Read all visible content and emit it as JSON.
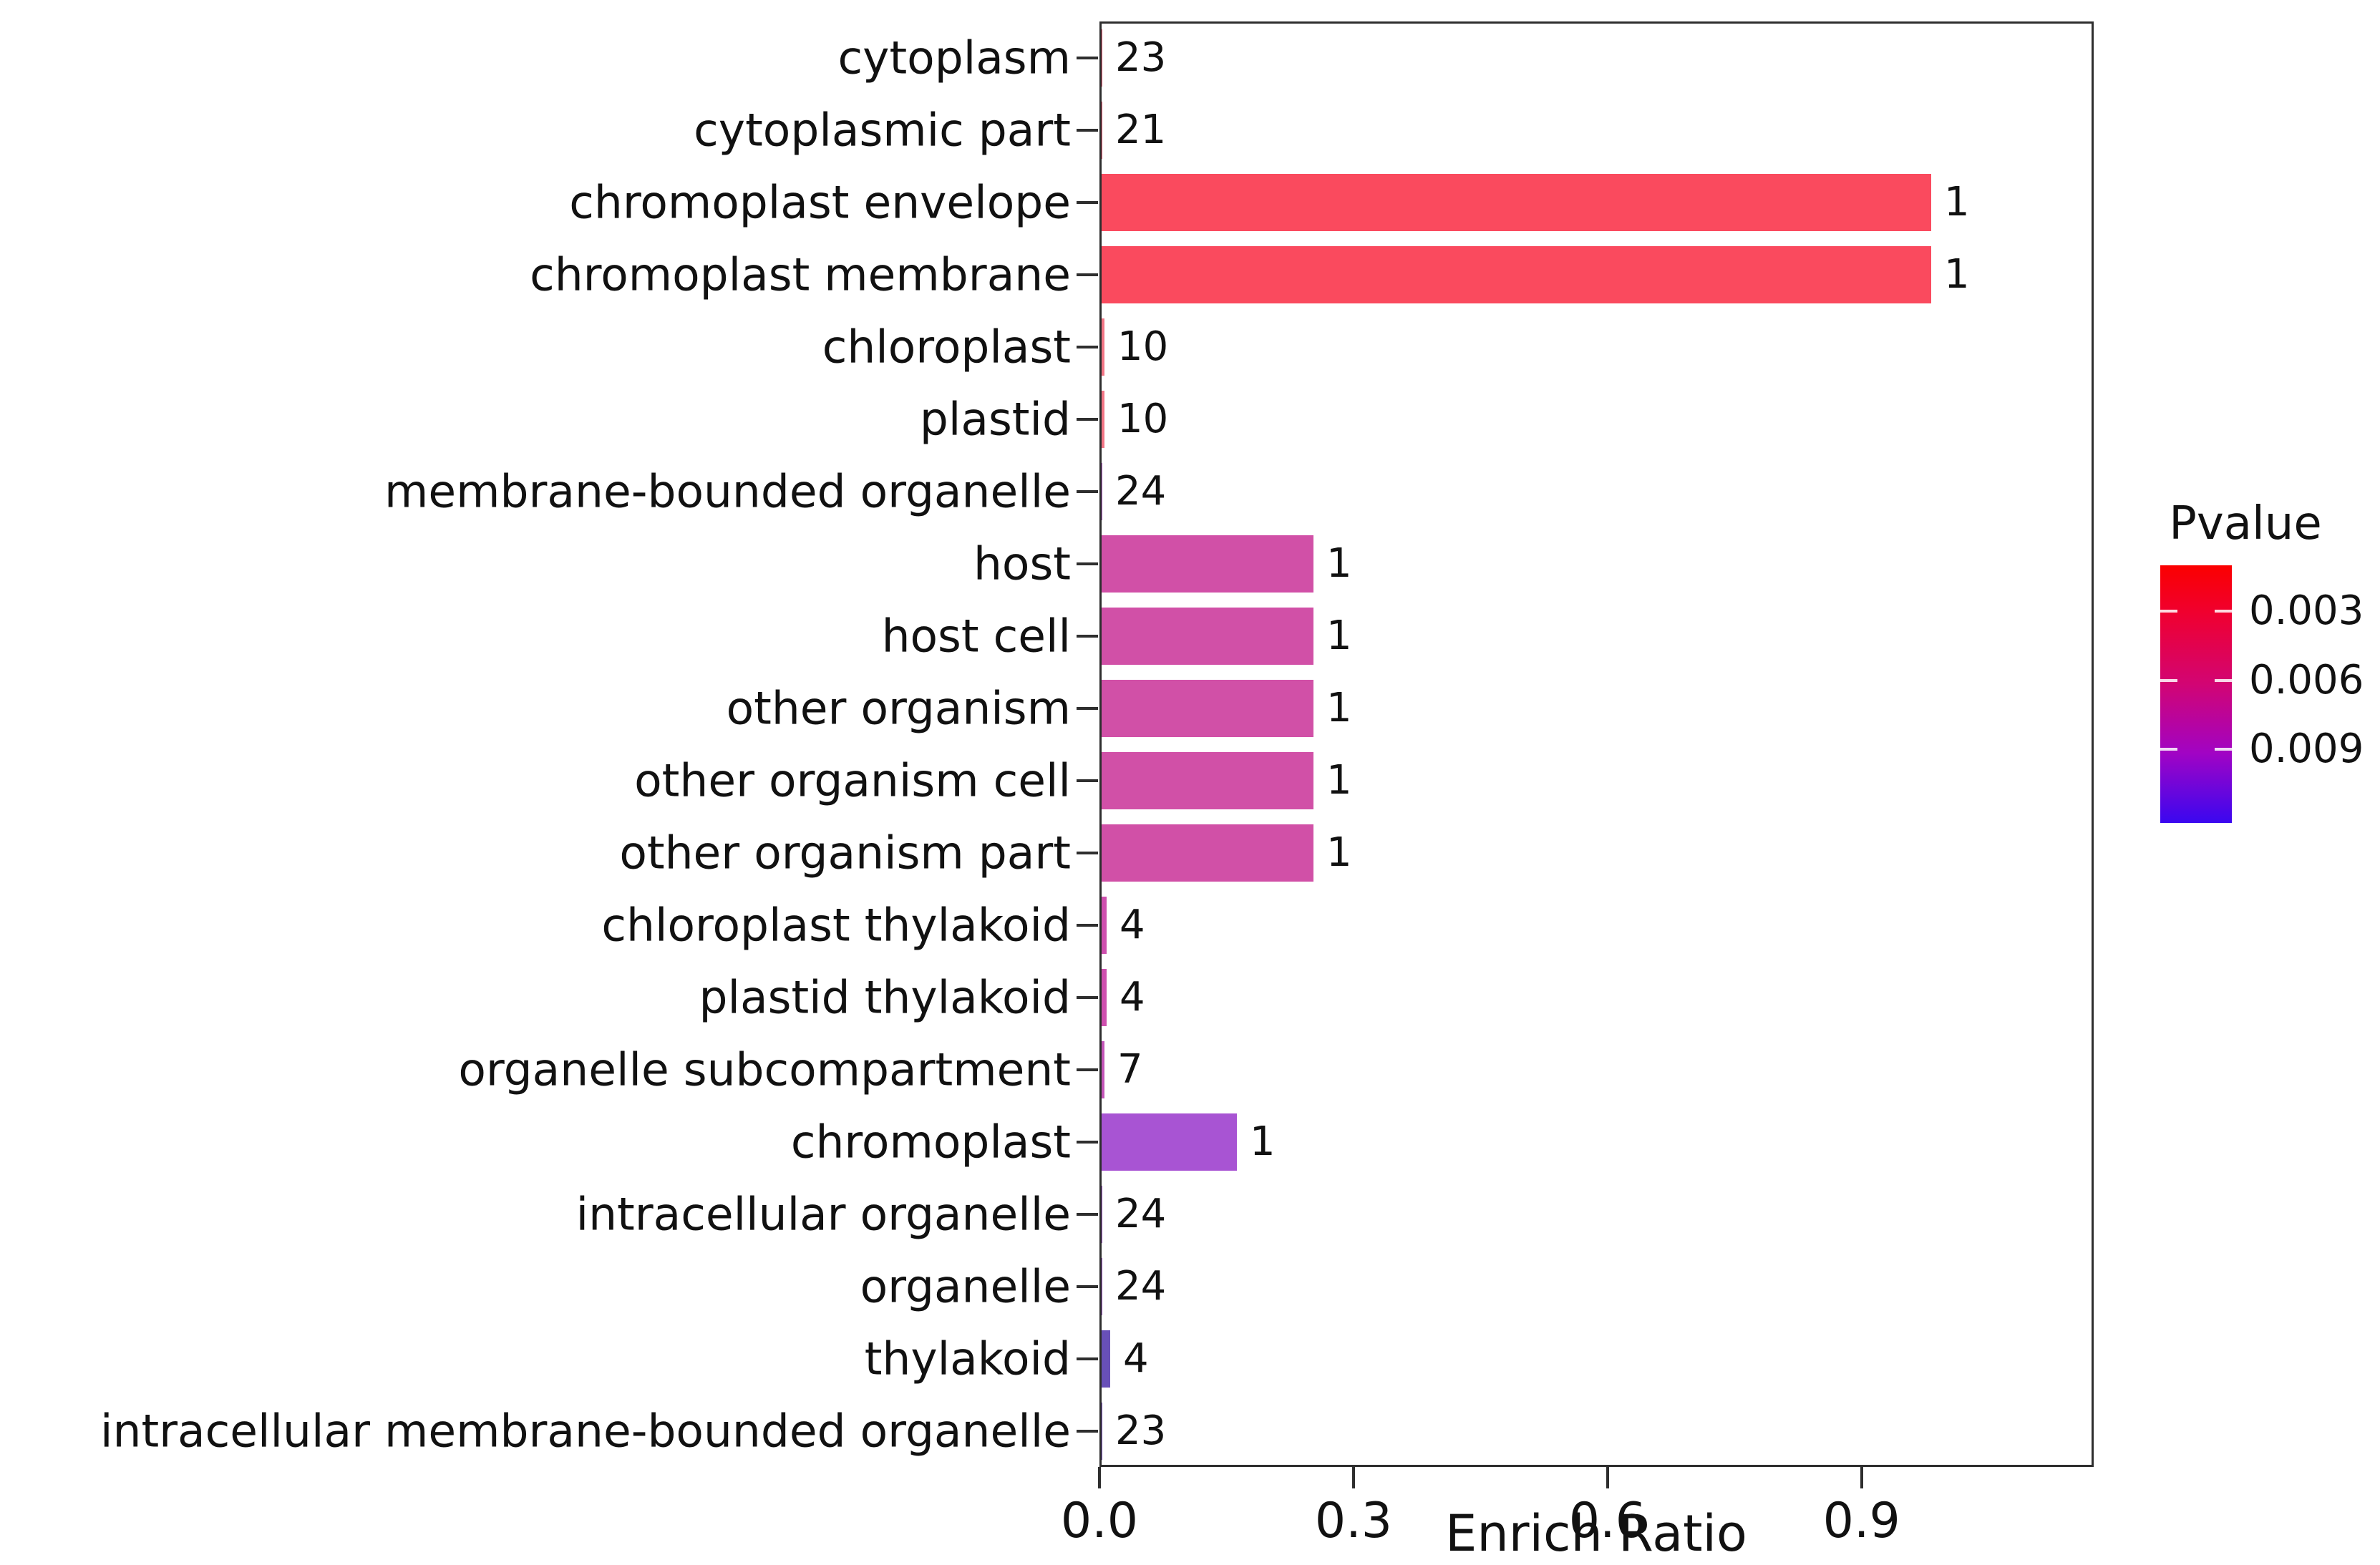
{
  "chart_data": {
    "type": "bar",
    "orientation": "horizontal",
    "title": "",
    "xlabel": "Enrich Ratio",
    "ylabel": "",
    "grid": false,
    "xlim": [
      0,
      1.174
    ],
    "x_ticks": {
      "values": [
        0.0,
        0.3,
        0.6,
        0.9
      ],
      "labels": [
        "0.0",
        "0.3",
        "0.6",
        "0.9"
      ]
    },
    "categories": [
      "cytoplasm",
      "cytoplasmic part",
      "chromoplast envelope",
      "chromoplast membrane",
      "chloroplast",
      "plastid",
      "membrane-bounded organelle",
      "host",
      "host cell",
      "other organism",
      "other organism cell",
      "other organism part",
      "chloroplast thylakoid",
      "plastid thylakoid",
      "organelle subcompartment",
      "chromoplast",
      "intracellular organelle",
      "organelle",
      "thylakoid",
      "intracellular membrane-bounded organelle"
    ],
    "series": [
      {
        "name": "Enrich Ratio",
        "values": [
          0.001,
          0.001,
          0.98,
          0.98,
          0.003,
          0.003,
          0.001,
          0.25,
          0.25,
          0.25,
          0.25,
          0.25,
          0.006,
          0.006,
          0.003,
          0.16,
          0.001,
          0.001,
          0.01,
          0.001
        ]
      }
    ],
    "bar_value_labels": [
      "23",
      "21",
      "1",
      "1",
      "10",
      "10",
      "24",
      "1",
      "1",
      "1",
      "1",
      "1",
      "4",
      "4",
      "7",
      "1",
      "24",
      "24",
      "4",
      "23"
    ],
    "bar_colors": [
      "#ee5570",
      "#ee5570",
      "#fa4a5e",
      "#fa4a5e",
      "#f27585",
      "#f27585",
      "#b055c5",
      "#d150a7",
      "#d150a7",
      "#d150a7",
      "#d150a7",
      "#d150a7",
      "#ce4fae",
      "#ce4fae",
      "#c455b8",
      "#a854d3",
      "#9a50c5",
      "#9a50c5",
      "#6850b8",
      "#7a50c0"
    ],
    "colorbar": {
      "title": "Pvalue",
      "tick_labels": [
        "0.003",
        "0.006",
        "0.009"
      ],
      "tick_values": [
        0.003,
        0.006,
        0.009
      ],
      "range": [
        0.001,
        0.0122
      ],
      "gradient_stops": [
        {
          "pos": 0,
          "color": "#fb0000"
        },
        {
          "pos": 18,
          "color": "#f0002e"
        },
        {
          "pos": 46,
          "color": "#d20573"
        },
        {
          "pos": 73,
          "color": "#a104c4"
        },
        {
          "pos": 100,
          "color": "#3a07f0"
        }
      ]
    },
    "text_color": "#111111",
    "axis_color": "#2e2e2e"
  }
}
